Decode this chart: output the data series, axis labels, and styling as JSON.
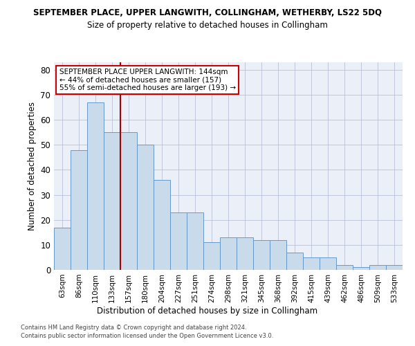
{
  "title": "SEPTEMBER PLACE, UPPER LANGWITH, COLLINGHAM, WETHERBY, LS22 5DQ",
  "subtitle": "Size of property relative to detached houses in Collingham",
  "xlabel": "Distribution of detached houses by size in Collingham",
  "ylabel": "Number of detached properties",
  "categories": [
    "63sqm",
    "86sqm",
    "110sqm",
    "133sqm",
    "157sqm",
    "180sqm",
    "204sqm",
    "227sqm",
    "251sqm",
    "274sqm",
    "298sqm",
    "321sqm",
    "345sqm",
    "368sqm",
    "392sqm",
    "415sqm",
    "439sqm",
    "462sqm",
    "486sqm",
    "509sqm",
    "533sqm"
  ],
  "values": [
    17,
    48,
    67,
    55,
    55,
    50,
    36,
    23,
    23,
    11,
    13,
    13,
    12,
    12,
    7,
    5,
    5,
    2,
    1,
    2,
    2
  ],
  "bar_color": "#c9daea",
  "bar_edge_color": "#6699cc",
  "vline_x_index": 3.5,
  "vline_color": "#aa0000",
  "annotation_text": "SEPTEMBER PLACE UPPER LANGWITH: 144sqm\n← 44% of detached houses are smaller (157)\n55% of semi-detached houses are larger (193) →",
  "annotation_box_color": "#ffffff",
  "annotation_box_edge": "#cc0000",
  "ylim": [
    0,
    83
  ],
  "yticks": [
    0,
    10,
    20,
    30,
    40,
    50,
    60,
    70,
    80
  ],
  "grid_color": "#b0b8d0",
  "bg_color": "#eaeff8",
  "footer1": "Contains HM Land Registry data © Crown copyright and database right 2024.",
  "footer2": "Contains public sector information licensed under the Open Government Licence v3.0."
}
